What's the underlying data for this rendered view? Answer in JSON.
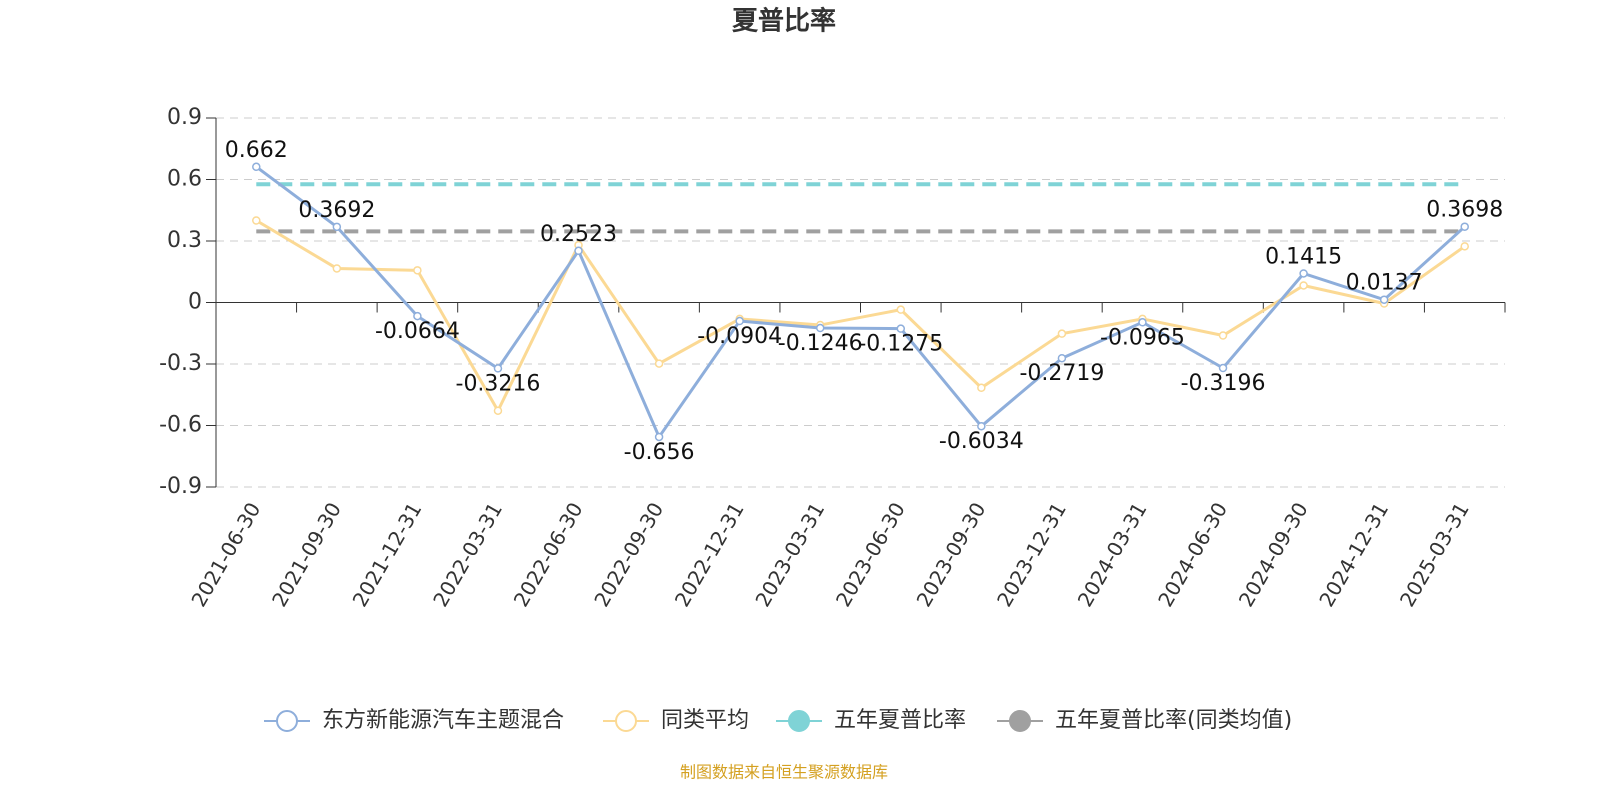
{
  "chart_data": {
    "type": "line",
    "title": "夏普比率",
    "categories": [
      "2021-06-30",
      "2021-09-30",
      "2021-12-31",
      "2022-03-31",
      "2022-06-30",
      "2022-09-30",
      "2022-12-31",
      "2023-03-31",
      "2023-06-30",
      "2023-09-30",
      "2023-12-31",
      "2024-03-31",
      "2024-06-30",
      "2024-09-30",
      "2024-12-31",
      "2025-03-31"
    ],
    "series": [
      {
        "name": "东方新能源汽车主题混合",
        "color": "#8eaedb",
        "values": [
          0.662,
          0.3692,
          -0.0664,
          -0.3216,
          0.2523,
          -0.656,
          -0.0904,
          -0.1246,
          -0.1275,
          -0.6034,
          -0.2719,
          -0.0965,
          -0.3196,
          0.1415,
          0.0137,
          0.3698
        ]
      },
      {
        "name": "同类平均",
        "color": "#fbd994",
        "values": [
          0.4,
          0.166,
          0.157,
          -0.528,
          0.28,
          -0.298,
          -0.08,
          -0.11,
          -0.035,
          -0.416,
          -0.152,
          -0.08,
          -0.161,
          0.083,
          -0.005,
          0.274
        ]
      },
      {
        "name": "五年夏普比率",
        "color": "#7fd3d6",
        "value": 0.577
      },
      {
        "name": "五年夏普比率(同类均值)",
        "color": "#a0a0a0",
        "value": 0.347
      }
    ],
    "ylim": [
      -0.9,
      0.9
    ],
    "yticks": [
      0.9,
      0.6,
      0.3,
      0,
      -0.3,
      -0.6,
      -0.9
    ],
    "grid": true,
    "source": "制图数据来自恒生聚源数据库"
  }
}
